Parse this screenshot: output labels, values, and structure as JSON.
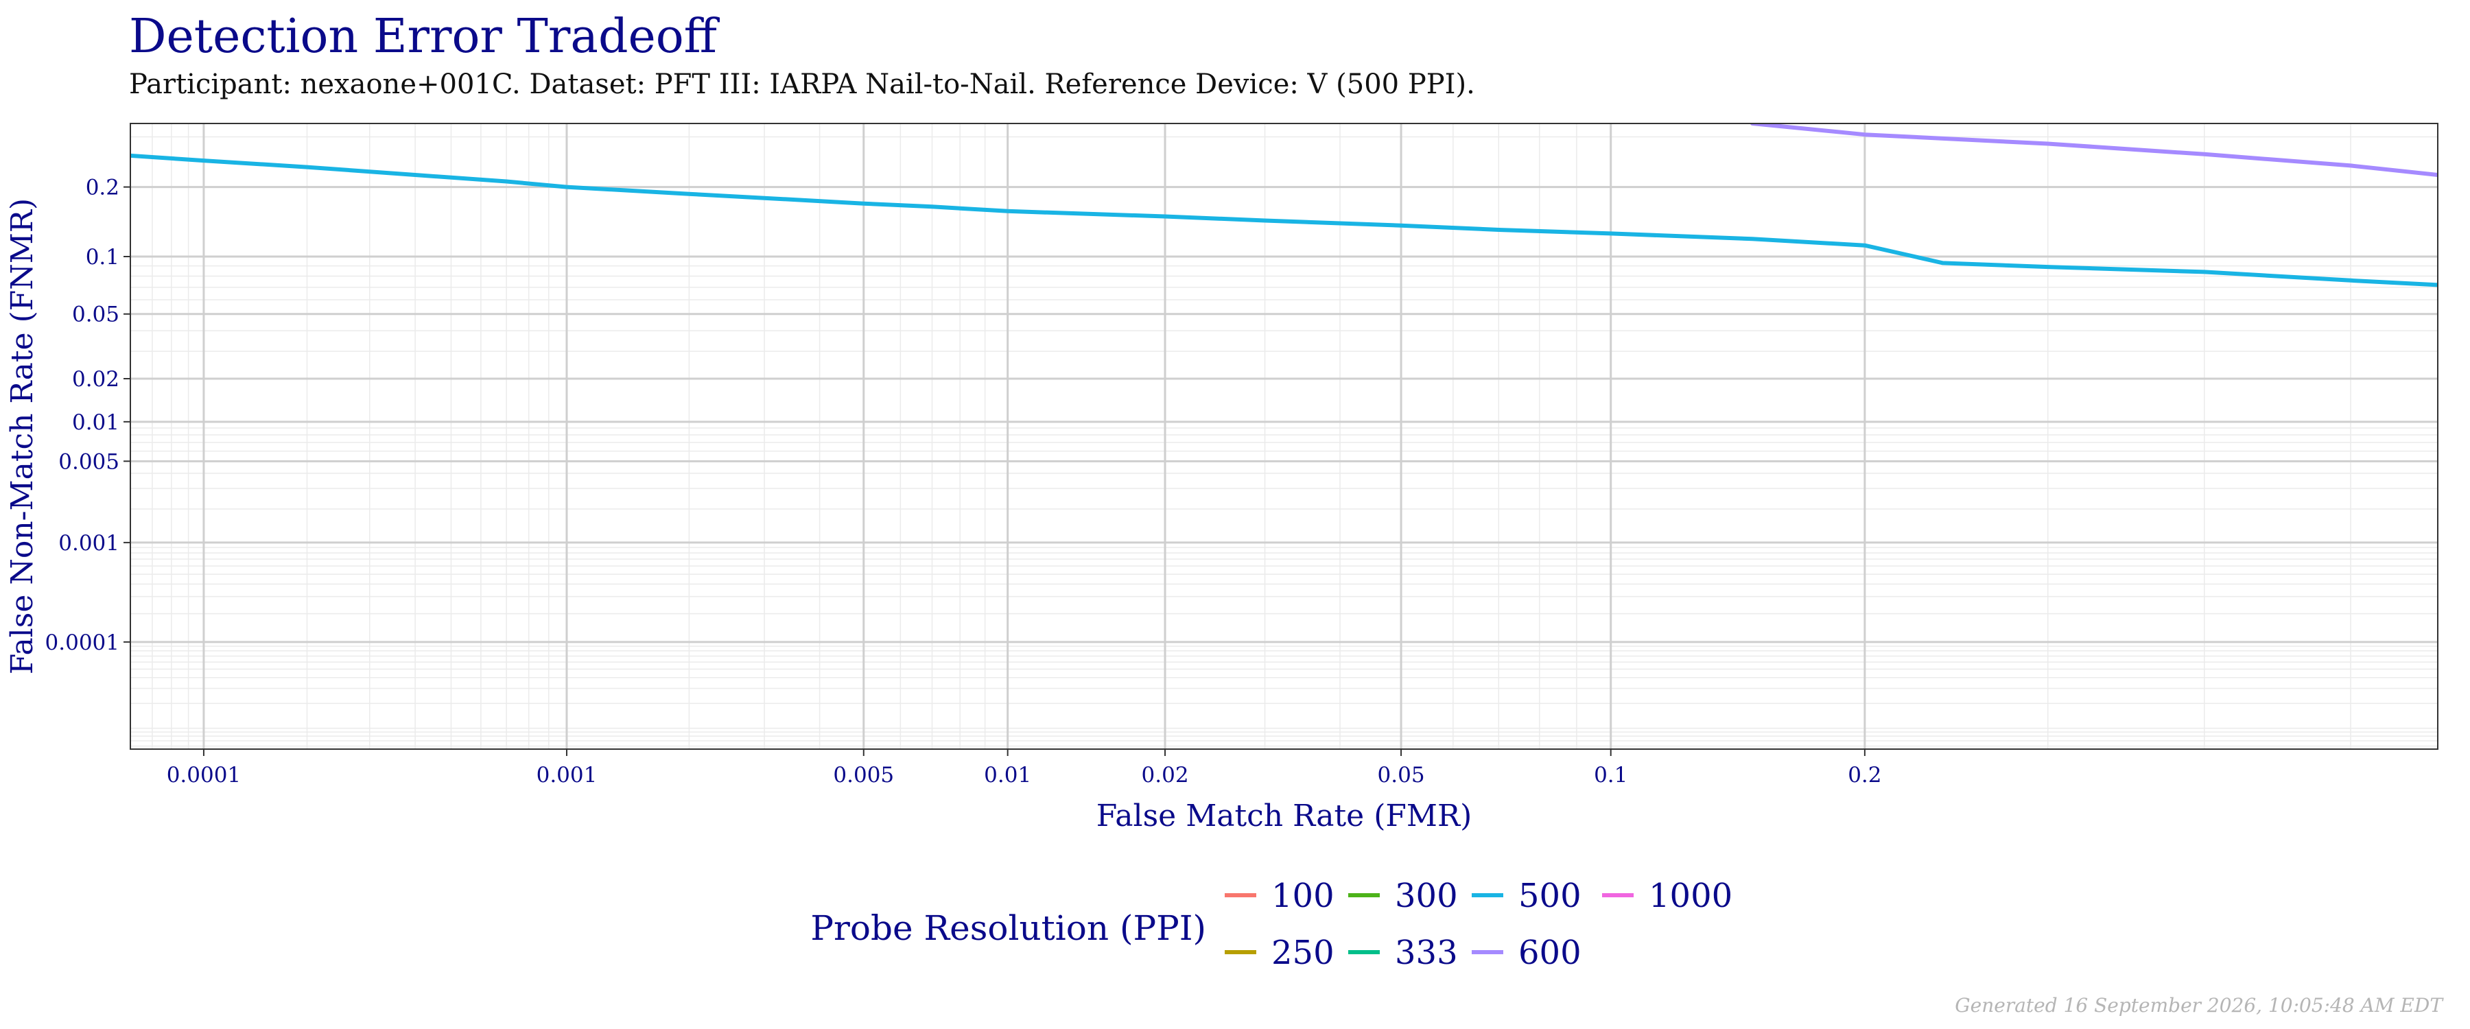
{
  "chart_data": {
    "type": "line",
    "title": "Detection Error Tradeoff",
    "subtitle": "Participant: nexaone+001C. Dataset: PFT III: IARPA Nail-to-Nail. Reference Device: V (500 PPI).",
    "xlabel": "False Match Rate (FMR)",
    "ylabel": "False Non-Match Rate (FNMR)",
    "x_scale": "probit",
    "y_scale": "probit",
    "xlim": [
      6e-05,
      0.56
    ],
    "ylim": [
      5.5e-06,
      0.33
    ],
    "x_ticks": [
      {
        "value": 0.0001,
        "label": "0.0001"
      },
      {
        "value": 0.001,
        "label": "0.001"
      },
      {
        "value": 0.005,
        "label": "0.005"
      },
      {
        "value": 0.01,
        "label": "0.01"
      },
      {
        "value": 0.02,
        "label": "0.02"
      },
      {
        "value": 0.05,
        "label": "0.05"
      },
      {
        "value": 0.1,
        "label": "0.1"
      },
      {
        "value": 0.2,
        "label": "0.2"
      }
    ],
    "y_ticks": [
      {
        "value": 0.2,
        "label": "0.2"
      },
      {
        "value": 0.1,
        "label": "0.1"
      },
      {
        "value": 0.05,
        "label": "0.05"
      },
      {
        "value": 0.02,
        "label": "0.02"
      },
      {
        "value": 0.01,
        "label": "0.01"
      },
      {
        "value": 0.005,
        "label": "0.005"
      },
      {
        "value": 0.001,
        "label": "0.001"
      },
      {
        "value": 0.0001,
        "label": "0.0001"
      }
    ],
    "grid": true,
    "legend_title": "Probe Resolution (PPI)",
    "legend_position": "bottom",
    "legend": [
      {
        "label": "100",
        "color": "#F8766D"
      },
      {
        "label": "250",
        "color": "#B79F00"
      },
      {
        "label": "300",
        "color": "#4DB31A"
      },
      {
        "label": "333",
        "color": "#00BF8A"
      },
      {
        "label": "500",
        "color": "#19B4E4"
      },
      {
        "label": "600",
        "color": "#A58AFF"
      },
      {
        "label": "1000",
        "color": "#F066E0"
      }
    ],
    "series": [
      {
        "name": "500",
        "color": "#19B4E4",
        "points": [
          [
            6e-05,
            0.26
          ],
          [
            0.0001,
            0.25
          ],
          [
            0.0002,
            0.237
          ],
          [
            0.0004,
            0.222
          ],
          [
            0.0007,
            0.21
          ],
          [
            0.001,
            0.2
          ],
          [
            0.002,
            0.188
          ],
          [
            0.003,
            0.181
          ],
          [
            0.005,
            0.172
          ],
          [
            0.007,
            0.167
          ],
          [
            0.01,
            0.16
          ],
          [
            0.02,
            0.152
          ],
          [
            0.03,
            0.146
          ],
          [
            0.05,
            0.139
          ],
          [
            0.07,
            0.133
          ],
          [
            0.1,
            0.128
          ],
          [
            0.15,
            0.121
          ],
          [
            0.2,
            0.113
          ],
          [
            0.24,
            0.093
          ],
          [
            0.3,
            0.089
          ],
          [
            0.4,
            0.084
          ],
          [
            0.5,
            0.076
          ],
          [
            0.56,
            0.072
          ]
        ]
      },
      {
        "name": "600",
        "color": "#A58AFF",
        "points": [
          [
            0.15,
            0.33
          ],
          [
            0.2,
            0.305
          ],
          [
            0.3,
            0.285
          ],
          [
            0.4,
            0.263
          ],
          [
            0.5,
            0.24
          ],
          [
            0.56,
            0.222
          ]
        ]
      }
    ]
  },
  "footer": "Generated 16 September 2026, 10:05:48 AM EDT"
}
